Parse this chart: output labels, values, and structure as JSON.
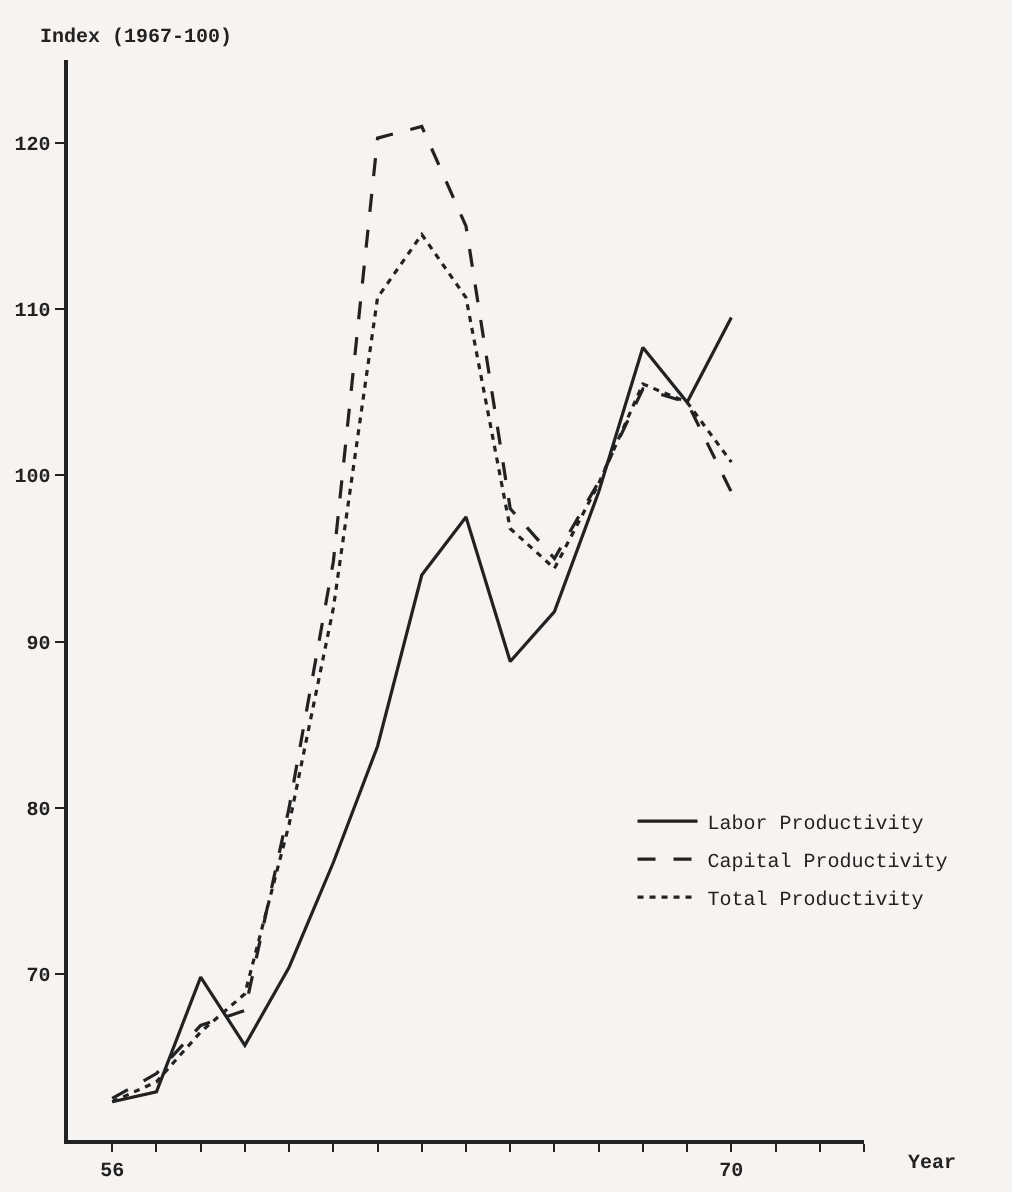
{
  "chart_data": {
    "type": "line",
    "ylabel": "Index (1967-100)",
    "xlabel": "Year",
    "x": [
      56,
      57,
      58,
      59,
      60,
      61,
      62,
      63,
      64,
      65,
      66,
      67,
      68,
      69,
      70
    ],
    "series": [
      {
        "name": "Labor Productivity",
        "color": "#222222",
        "line_style": "solid",
        "values": [
          62.3,
          62.9,
          69.8,
          65.7,
          70.4,
          76.7,
          83.7,
          94,
          97.5,
          88.8,
          91.8,
          99,
          107.7,
          104.4,
          109.5
        ]
      },
      {
        "name": "Capital Productivity",
        "color": "#222222",
        "line_style": "dashed",
        "values": [
          62.5,
          64,
          66.9,
          67.8,
          80,
          94.8,
          120.3,
          121,
          115,
          98,
          95,
          99.6,
          105.2,
          104.4,
          99
        ]
      },
      {
        "name": "Total Productivity",
        "color": "#222222",
        "line_style": "dotted",
        "values": [
          62.3,
          63.5,
          66.5,
          68.8,
          79,
          92,
          110.7,
          114.5,
          110.7,
          96.8,
          94.4,
          99.5,
          105.5,
          104.4,
          100.8
        ]
      }
    ],
    "xlim": [
      55,
      73
    ],
    "xticks": [
      56,
      {
        "value": 57,
        "label": null
      },
      {
        "value": 58,
        "label": null
      },
      {
        "value": 59,
        "label": null
      },
      {
        "value": 60,
        "label": null
      },
      {
        "value": 61,
        "label": null
      },
      {
        "value": 62,
        "label": null
      },
      {
        "value": 63,
        "label": null
      },
      {
        "value": 64,
        "label": null
      },
      {
        "value": 65,
        "label": null
      },
      {
        "value": 66,
        "label": null
      },
      {
        "value": 67,
        "label": null
      },
      {
        "value": 68,
        "label": null
      },
      {
        "value": 69,
        "label": null
      },
      70,
      {
        "value": 71,
        "label": null
      },
      {
        "value": 72,
        "label": null
      },
      {
        "value": 73,
        "label": null
      }
    ],
    "ylim": [
      60,
      125
    ],
    "yticks": [
      70,
      80,
      90,
      100,
      110,
      120
    ],
    "grid": false,
    "legend": "right",
    "marker": "none"
  }
}
